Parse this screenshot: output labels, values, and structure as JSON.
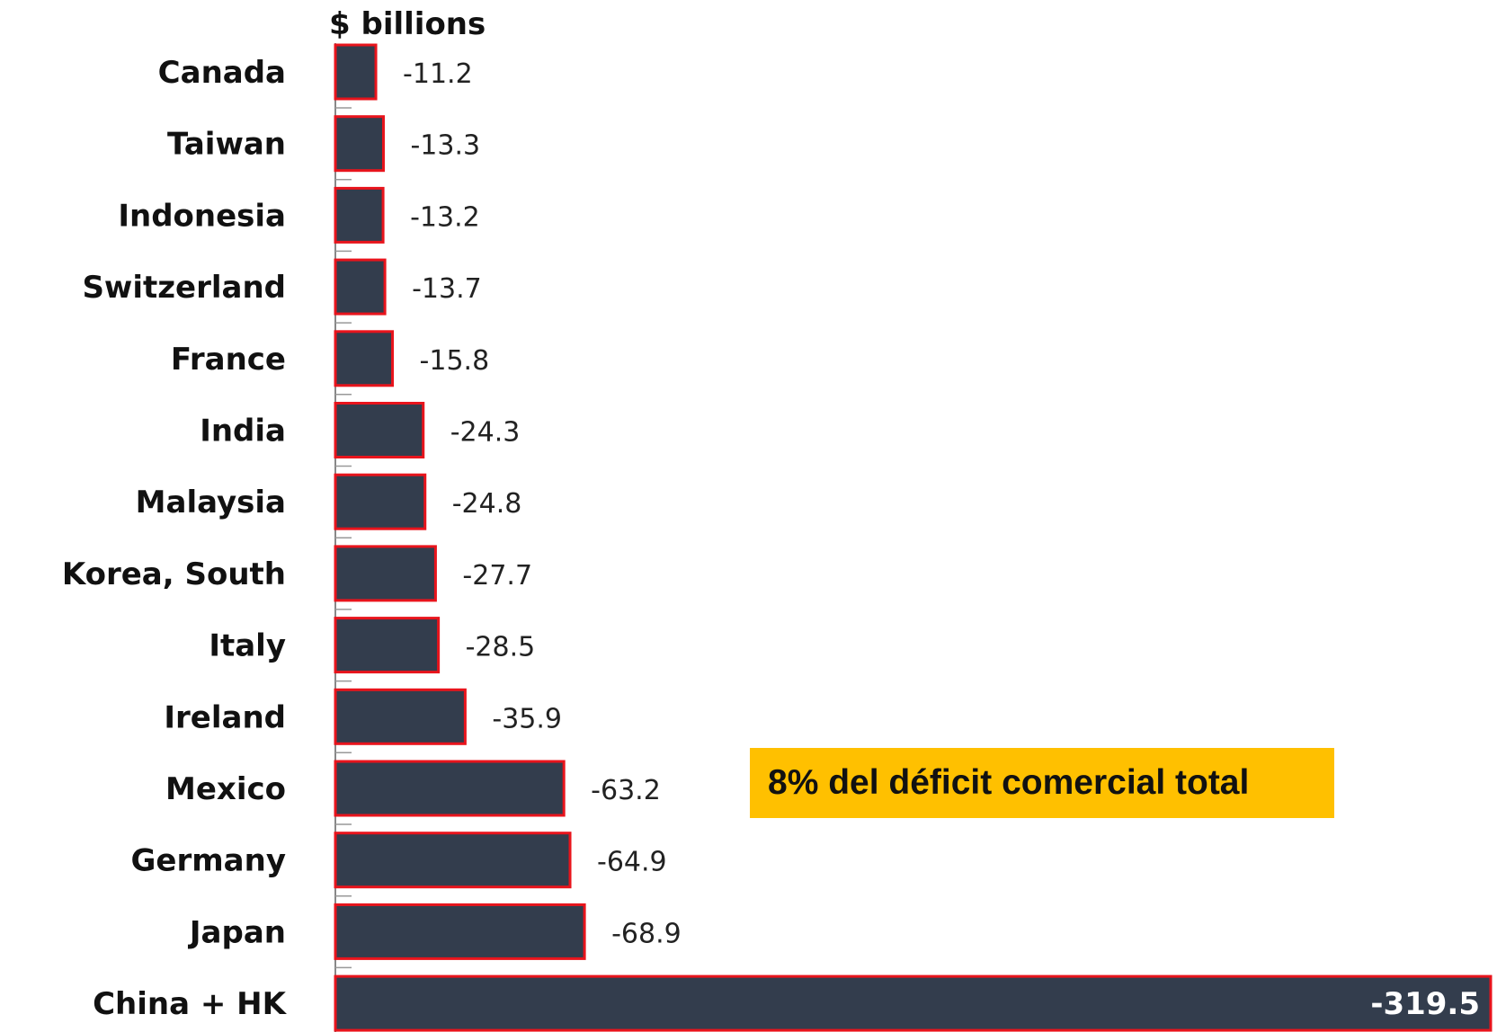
{
  "chart_data": {
    "type": "bar",
    "orientation": "horizontal",
    "title": "",
    "ylabel": "$ billions",
    "xlabel": "",
    "categories": [
      "Canada",
      "Taiwan",
      "Indonesia",
      "Switzerland",
      "France",
      "India",
      "Malaysia",
      "Korea, South",
      "Italy",
      "Ireland",
      "Mexico",
      "Germany",
      "Japan",
      "China + HK"
    ],
    "values": [
      -11.2,
      -13.3,
      -13.2,
      -13.7,
      -15.8,
      -24.3,
      -24.8,
      -27.7,
      -28.5,
      -35.9,
      -63.2,
      -64.9,
      -68.9,
      -319.5
    ],
    "value_labels": [
      "-11.2",
      "-13.3",
      "-13.2",
      "-13.7",
      "-15.8",
      "-24.3",
      "-24.8",
      "-27.7",
      "-28.5",
      "-35.9",
      "-63.2",
      "-64.9",
      "-68.9",
      "-319.5"
    ],
    "xlim": [
      0,
      -319.5
    ],
    "grid": false,
    "legend": "none",
    "colors": {
      "bar_fill": "#333d4d",
      "bar_outline": "#e8141c",
      "annotation_bg": "#ffc000"
    },
    "annotation": "8% del déficit comercial total"
  }
}
